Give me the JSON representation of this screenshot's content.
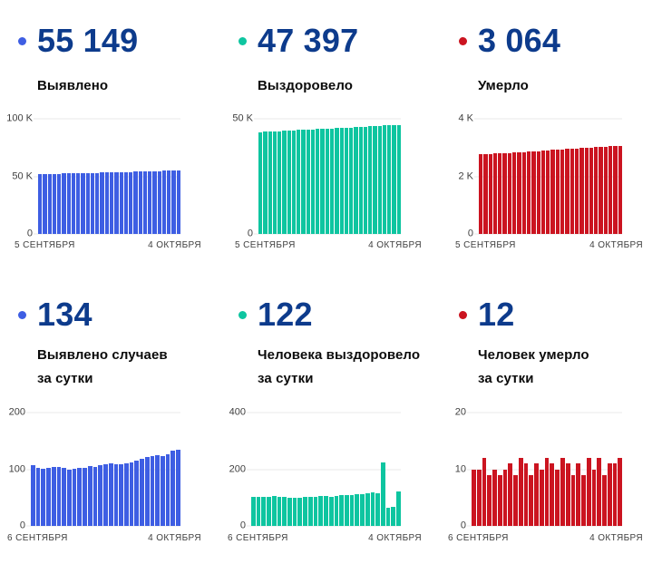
{
  "theme": {
    "background": "#FFFFFF",
    "kpi_number_color": "#0D3B8C",
    "title_color": "#0B0B0B",
    "axis_text_color": "#404040",
    "gridline_color": "#EAEAEA",
    "confirmed_color": "#3E5EE3",
    "recovered_color": "#0EC5A0",
    "deaths_color": "#CB1420"
  },
  "chart_data": [
    {
      "type": "bar",
      "kpi_value": "55 149",
      "title": "Выявлено",
      "color": "#3E5EE3",
      "x_start_label": "5 СЕНТЯБРЯ",
      "x_end_label": "4 ОКТЯБРЯ",
      "ylim": [
        0,
        100000
      ],
      "yticks": [
        {
          "label": "100 K",
          "value": 100000
        },
        {
          "label": "50 K",
          "value": 50000
        },
        {
          "label": "0",
          "value": 0
        }
      ],
      "values": [
        51924,
        52031,
        52134,
        52235,
        52338,
        52442,
        52546,
        52648,
        52748,
        52849,
        52952,
        53055,
        53160,
        53264,
        53371,
        53480,
        53590,
        53699,
        53808,
        53918,
        54030,
        54145,
        54263,
        54384,
        54507,
        54632,
        54755,
        54882,
        55015,
        55149
      ]
    },
    {
      "type": "bar",
      "kpi_value": "47 397",
      "title": "Выздоровело",
      "color": "#0EC5A0",
      "x_start_label": "5 СЕНТЯБРЯ",
      "x_end_label": "4 ОКТЯБРЯ",
      "ylim": [
        0,
        50000
      ],
      "yticks": [
        {
          "label": "50 K",
          "value": 50000
        },
        {
          "label": "0",
          "value": 0
        }
      ],
      "values": [
        44270,
        44373,
        44477,
        44580,
        44684,
        44789,
        44892,
        44993,
        45092,
        45190,
        45290,
        45392,
        45495,
        45599,
        45704,
        45810,
        45914,
        46020,
        46128,
        46236,
        46346,
        46458,
        46571,
        46686,
        46804,
        46919,
        47144,
        47207,
        47275,
        47397
      ]
    },
    {
      "type": "bar",
      "kpi_value": "3 064",
      "title": "Умерло",
      "color": "#CB1420",
      "x_start_label": "5 СЕНТЯБРЯ",
      "x_end_label": "4 ОКТЯБРЯ",
      "ylim": [
        0,
        4000
      ],
      "yticks": [
        {
          "label": "4 K",
          "value": 4000
        },
        {
          "label": "2 K",
          "value": 2000
        },
        {
          "label": "0",
          "value": 0
        }
      ],
      "values": [
        2759,
        2769,
        2779,
        2791,
        2800,
        2810,
        2819,
        2829,
        2840,
        2849,
        2861,
        2872,
        2881,
        2892,
        2902,
        2914,
        2925,
        2935,
        2947,
        2958,
        2967,
        2978,
        2987,
        2999,
        3009,
        3021,
        3030,
        3041,
        3052,
        3064
      ]
    },
    {
      "type": "bar",
      "kpi_value": "134",
      "title": "Выявлено случаев\nза сутки",
      "color": "#3E5EE3",
      "x_start_label": "6 СЕНТЯБРЯ",
      "x_end_label": "4 ОКТЯБРЯ",
      "ylim": [
        0,
        200
      ],
      "yticks": [
        {
          "label": "200",
          "value": 200
        },
        {
          "label": "100",
          "value": 100
        },
        {
          "label": "0",
          "value": 0
        }
      ],
      "values": [
        107,
        103,
        101,
        103,
        104,
        104,
        102,
        100,
        101,
        103,
        103,
        105,
        104,
        107,
        109,
        110,
        109,
        109,
        110,
        112,
        115,
        118,
        121,
        123,
        125,
        123,
        127,
        133,
        134
      ]
    },
    {
      "type": "bar",
      "kpi_value": "122",
      "title": "Человека выздоровело\nза сутки",
      "color": "#0EC5A0",
      "x_start_label": "6 СЕНТЯБРЯ",
      "x_end_label": "4 ОКТЯБРЯ",
      "ylim": [
        0,
        400
      ],
      "yticks": [
        {
          "label": "400",
          "value": 400
        },
        {
          "label": "200",
          "value": 200
        },
        {
          "label": "0",
          "value": 0
        }
      ],
      "values": [
        103,
        104,
        103,
        104,
        105,
        103,
        101,
        99,
        98,
        100,
        102,
        103,
        104,
        105,
        106,
        104,
        106,
        108,
        108,
        110,
        112,
        113,
        115,
        118,
        115,
        225,
        63,
        68,
        122
      ]
    },
    {
      "type": "bar",
      "kpi_value": "12",
      "title": "Человек умерло\nза сутки",
      "color": "#CB1420",
      "x_start_label": "6 СЕНТЯБРЯ",
      "x_end_label": "4 ОКТЯБРЯ",
      "ylim": [
        0,
        20
      ],
      "yticks": [
        {
          "label": "20",
          "value": 20
        },
        {
          "label": "10",
          "value": 10
        },
        {
          "label": "0",
          "value": 0
        }
      ],
      "values": [
        10,
        10,
        12,
        9,
        10,
        9,
        10,
        11,
        9,
        12,
        11,
        9,
        11,
        10,
        12,
        11,
        10,
        12,
        11,
        9,
        11,
        9,
        12,
        10,
        12,
        9,
        11,
        11,
        12
      ]
    }
  ]
}
